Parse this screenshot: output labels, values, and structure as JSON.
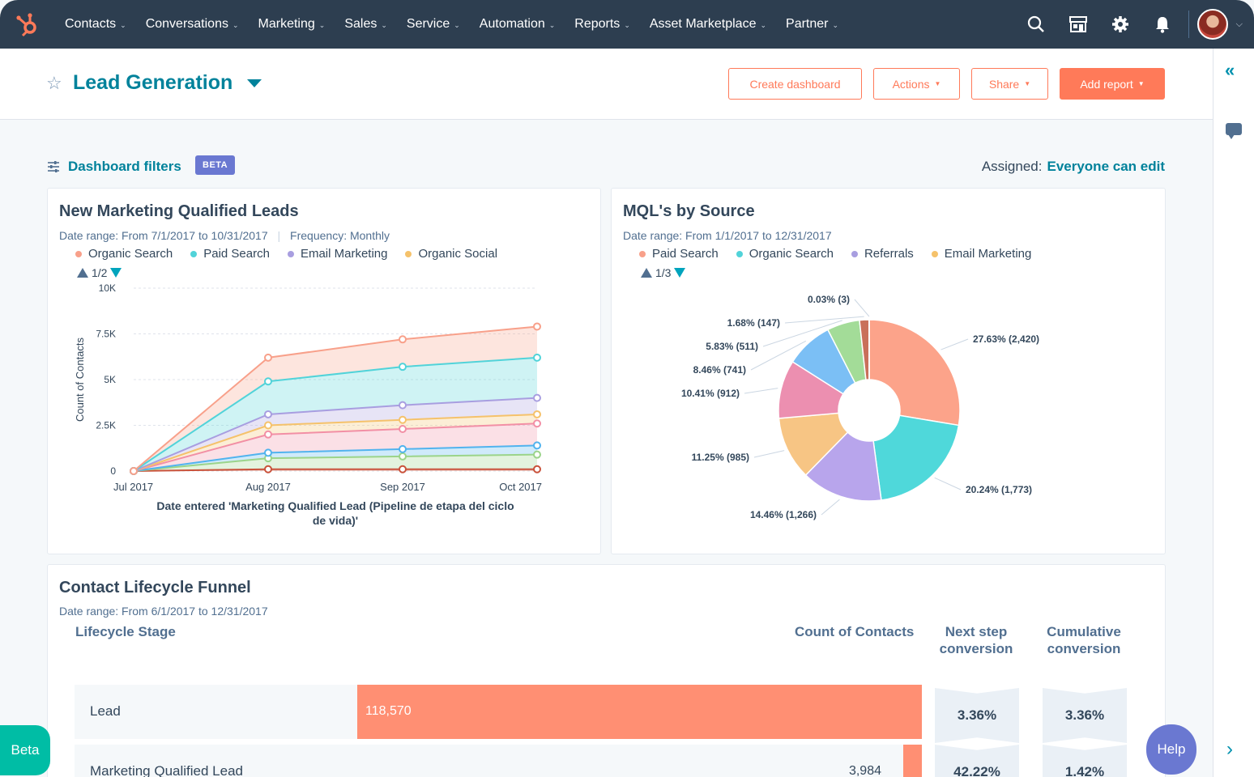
{
  "nav": {
    "items": [
      {
        "label": "Contacts"
      },
      {
        "label": "Conversations"
      },
      {
        "label": "Marketing"
      },
      {
        "label": "Sales"
      },
      {
        "label": "Service"
      },
      {
        "label": "Automation"
      },
      {
        "label": "Reports"
      },
      {
        "label": "Asset Marketplace"
      },
      {
        "label": "Partner"
      }
    ],
    "icons": [
      "search-icon",
      "marketplace-icon",
      "gear-icon",
      "bell-icon"
    ]
  },
  "header": {
    "title": "Lead Generation",
    "buttons": {
      "create": "Create dashboard",
      "actions": "Actions",
      "share": "Share",
      "add_report": "Add report"
    }
  },
  "filters": {
    "label": "Dashboard filters",
    "badge": "BETA",
    "assigned_label": "Assigned:",
    "assigned_value": "Everyone can edit"
  },
  "colors": {
    "accent": "#00829b",
    "orange": "#ff7a59",
    "nav_bg": "#2d3e50"
  },
  "mql_chart": {
    "title": "New Marketing Qualified Leads",
    "date_range": "Date range: From 7/1/2017 to 10/31/2017",
    "frequency": "Frequency: Monthly",
    "legend": [
      {
        "name": "Organic Search",
        "color": "#f8a08a"
      },
      {
        "name": "Paid Search",
        "color": "#51d3d9"
      },
      {
        "name": "Email Marketing",
        "color": "#a89ee0"
      },
      {
        "name": "Organic Social",
        "color": "#f5c26b"
      }
    ],
    "pager": "1/2",
    "ylabel": "Count of Contacts",
    "xlabel": "Date entered 'Marketing Qualified Lead (Pipeline de etapa del ciclo",
    "xlabel2": "de vida)'",
    "yticks": [
      "10K",
      "7.5K",
      "5K",
      "2.5K",
      "0"
    ],
    "xticks": [
      "Jul 2017",
      "Aug 2017",
      "Sep 2017",
      "Oct 2017"
    ]
  },
  "source_chart": {
    "title": "MQL's by Source",
    "date_range": "Date range: From 1/1/2017 to 12/31/2017",
    "legend": [
      {
        "name": "Paid Search",
        "color": "#f8a08a"
      },
      {
        "name": "Organic Search",
        "color": "#51d3d9"
      },
      {
        "name": "Referrals",
        "color": "#a89ee0"
      },
      {
        "name": "Email Marketing",
        "color": "#f5c26b"
      }
    ],
    "pager": "1/3"
  },
  "chart_data": [
    {
      "type": "area",
      "title": "New Marketing Qualified Leads",
      "xlabel": "Date entered 'Marketing Qualified Lead (Pipeline de etapa del ciclo de vida)'",
      "ylabel": "Count of Contacts",
      "ylim": [
        0,
        10000
      ],
      "stacked": true,
      "categories": [
        "Jul 2017",
        "Aug 2017",
        "Sep 2017",
        "Oct 2017"
      ],
      "series": [
        {
          "name": "",
          "color": "#c9523b",
          "values": [
            0,
            100,
            100,
            100
          ]
        },
        {
          "name": "",
          "color": "#9bd48a",
          "values": [
            0,
            600,
            700,
            800
          ]
        },
        {
          "name": "",
          "color": "#51b3ee",
          "values": [
            0,
            300,
            400,
            500
          ]
        },
        {
          "name": "",
          "color": "#f28fa5",
          "values": [
            0,
            1000,
            1100,
            1200
          ]
        },
        {
          "name": "",
          "color": "#f5c26b",
          "values": [
            0,
            500,
            500,
            500
          ]
        },
        {
          "name": "",
          "color": "#a89ee0",
          "values": [
            0,
            600,
            800,
            900
          ]
        },
        {
          "name": "",
          "color": "#51d3d9",
          "values": [
            0,
            1800,
            2100,
            2200
          ]
        },
        {
          "name": "",
          "color": "#f8a08a",
          "values": [
            0,
            1300,
            1500,
            1700
          ]
        }
      ],
      "grid": true
    },
    {
      "type": "pie",
      "title": "MQL's by Source",
      "slices": [
        {
          "label": "27.63% (2,420)",
          "value": 27.63,
          "color": "#fca38a"
        },
        {
          "label": "20.24% (1,773)",
          "value": 20.24,
          "color": "#4fd8da"
        },
        {
          "label": "14.46% (1,266)",
          "value": 14.46,
          "color": "#b8a5ec"
        },
        {
          "label": "11.25% (985)",
          "value": 11.25,
          "color": "#f7c584"
        },
        {
          "label": "10.41% (912)",
          "value": 10.41,
          "color": "#ec8fb0"
        },
        {
          "label": "8.46% (741)",
          "value": 8.46,
          "color": "#7bbff5"
        },
        {
          "label": "5.83% (511)",
          "value": 5.83,
          "color": "#a3dc98"
        },
        {
          "label": "1.68% (147)",
          "value": 1.68,
          "color": "#c9705a"
        },
        {
          "label": "0.03% (3)",
          "value": 0.03,
          "color": "#5a6e80"
        }
      ]
    }
  ],
  "funnel": {
    "title": "Contact Lifecycle Funnel",
    "date_range": "Date range: From 6/1/2017 to 12/31/2017",
    "col_stage": "Lifecycle Stage",
    "col_count": "Count of Contacts",
    "col_next_1": "Next step",
    "col_next_2": "conversion",
    "col_cum_1": "Cumulative",
    "col_cum_2": "conversion",
    "rows": [
      {
        "stage": "Lead",
        "count": "118,570",
        "fraction": 1.0,
        "next": "3.36%",
        "cumulative": "3.36%"
      },
      {
        "stage": "Marketing Qualified Lead",
        "count": "3,984",
        "fraction": 0.0336,
        "next": "42.22%",
        "cumulative": "1.42%"
      }
    ]
  },
  "floating": {
    "beta": "Beta",
    "help": "Help"
  }
}
